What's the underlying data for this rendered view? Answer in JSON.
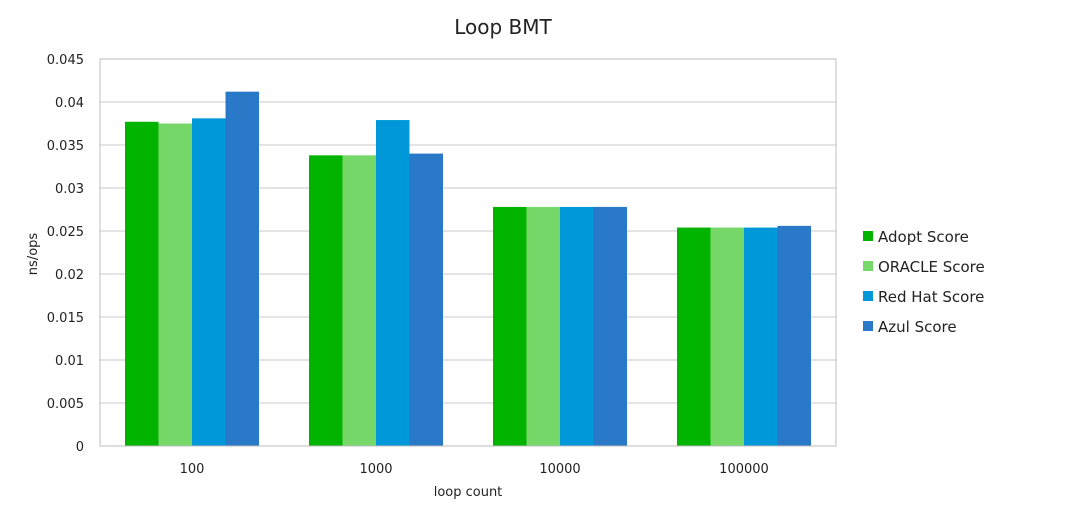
{
  "chart_data": {
    "type": "bar",
    "title": "Loop BMT",
    "xlabel": "loop count",
    "ylabel": "ns/ops",
    "categories": [
      "100",
      "1000",
      "10000",
      "100000"
    ],
    "ylim": [
      0,
      0.045
    ],
    "yticks": [
      0,
      0.005,
      0.01,
      0.015,
      0.02,
      0.025,
      0.03,
      0.035,
      0.04,
      0.045
    ],
    "ytick_labels": [
      "0",
      "0.005",
      "0.01",
      "0.015",
      "0.02",
      "0.025",
      "0.03",
      "0.035",
      "0.04",
      "0.045"
    ],
    "grid": true,
    "legend_position": "right",
    "series": [
      {
        "name": "Adopt Score",
        "color": "#00b400",
        "values": [
          0.0377,
          0.0338,
          0.0278,
          0.0254
        ]
      },
      {
        "name": "ORACLE Score",
        "color": "#77d86a",
        "values": [
          0.0375,
          0.0338,
          0.0278,
          0.0254
        ]
      },
      {
        "name": "Red Hat Score",
        "color": "#0098d8",
        "values": [
          0.0381,
          0.0379,
          0.0278,
          0.0254
        ]
      },
      {
        "name": "Azul Score",
        "color": "#2a78c8",
        "values": [
          0.0412,
          0.034,
          0.0278,
          0.0256
        ]
      }
    ]
  }
}
